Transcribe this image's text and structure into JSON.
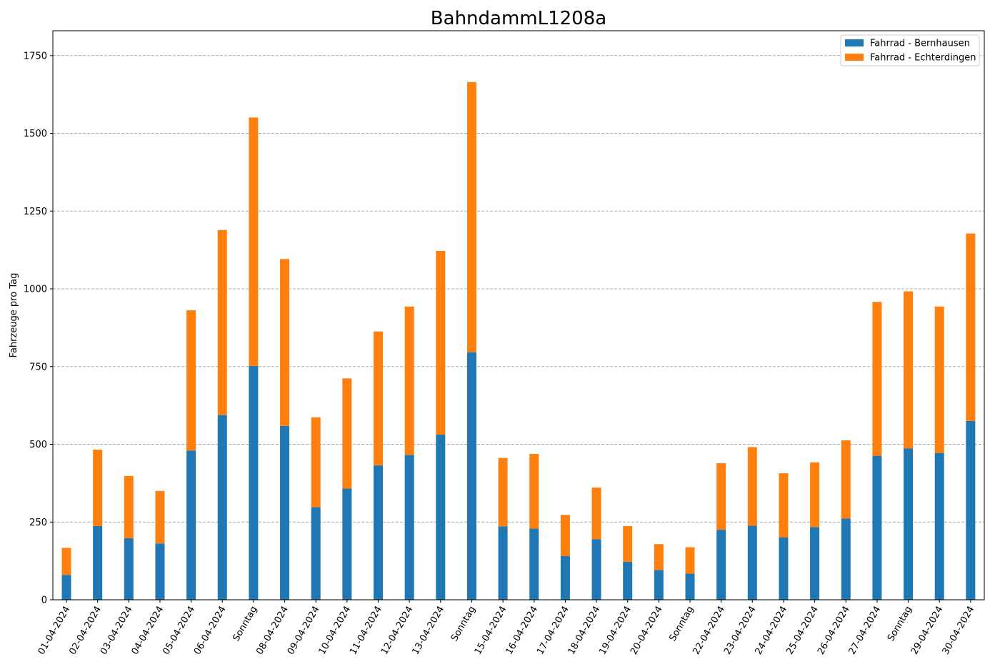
{
  "chart_data": {
    "type": "bar",
    "stacked": true,
    "title": "BahndammL1208a",
    "ylabel": "Fahrzeuge pro Tag",
    "xlabel": "",
    "ylim": [
      0,
      1830
    ],
    "yticks": [
      0,
      250,
      500,
      750,
      1000,
      1250,
      1500,
      1750
    ],
    "grid": "y-dashed",
    "legend_position": "top-right",
    "categories": [
      "01-04-2024",
      "02-04-2024",
      "03-04-2024",
      "04-04-2024",
      "05-04-2024",
      "06-04-2024",
      "Sonntag",
      "08-04-2024",
      "09-04-2024",
      "10-04-2024",
      "11-04-2024",
      "12-04-2024",
      "13-04-2024",
      "Sonntag",
      "15-04-2024",
      "16-04-2024",
      "17-04-2024",
      "18-04-2024",
      "19-04-2024",
      "20-04-2024",
      "Sonntag",
      "22-04-2024",
      "23-04-2024",
      "24-04-2024",
      "25-04-2024",
      "26-04-2024",
      "27-04-2024",
      "Sonntag",
      "29-04-2024",
      "30-04-2024"
    ],
    "series": [
      {
        "name": "Fahrrad - Bernhausen",
        "color": "#1f77b4",
        "values": [
          80,
          237,
          198,
          181,
          480,
          594,
          752,
          559,
          298,
          358,
          432,
          466,
          531,
          796,
          236,
          229,
          141,
          195,
          122,
          96,
          84,
          225,
          238,
          201,
          234,
          261,
          463,
          487,
          472,
          575
        ]
      },
      {
        "name": "Fahrrad - Echterdingen",
        "color": "#ff7f0e",
        "values": [
          87,
          246,
          200,
          169,
          451,
          595,
          799,
          537,
          289,
          354,
          431,
          477,
          591,
          869,
          220,
          240,
          132,
          166,
          115,
          83,
          85,
          214,
          253,
          206,
          208,
          252,
          495,
          505,
          471,
          603
        ]
      }
    ]
  }
}
